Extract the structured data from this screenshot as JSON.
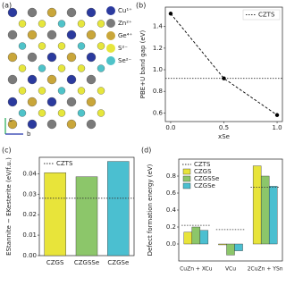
{
  "structure": {
    "label": "(a)",
    "legend": [
      "Cu¹⁺",
      "Zn²⁺",
      "Ge⁴⁺",
      "S²⁻",
      "Se²⁻"
    ],
    "legend_colors": [
      "#2b3a9e",
      "#7a7a7a",
      "#c9a63a",
      "#e6e63c",
      "#4fc3c9"
    ],
    "axes": [
      "c",
      "b"
    ]
  },
  "chart_data": [
    {
      "type": "line",
      "label": "(b)",
      "x": [
        0,
        0.5,
        1.0
      ],
      "series": [
        {
          "values": [
            1.52,
            0.92,
            0.58
          ],
          "color": "#000000"
        }
      ],
      "xlim": [
        -0.05,
        1.05
      ],
      "xticks": [
        {
          "value": 0,
          "label": "0.0"
        },
        {
          "value": 0.5,
          "label": "0.5"
        },
        {
          "value": 1,
          "label": "1.0"
        }
      ],
      "ylim": [
        0.52,
        1.58
      ],
      "yticks": [
        0.6,
        0.8,
        {
          "value": 1,
          "label": "1.0"
        },
        1.2,
        1.4
      ],
      "xlabel": "xSe",
      "ylabel": "PBE+U band gap (eV)",
      "reference": {
        "name": "CZTS",
        "value": 0.92
      },
      "legend": "upper right"
    },
    {
      "type": "bar",
      "label": "(c)",
      "categories": [
        "CZGS",
        "CZGSSe",
        "CZGSe"
      ],
      "values": [
        0.0405,
        0.0385,
        0.046
      ],
      "colors": [
        "#e8e43a",
        "#8cc66a",
        "#4bbfd0"
      ],
      "ylim": [
        0,
        0.048
      ],
      "yticks": [
        {
          "value": 0,
          "label": "0.00"
        },
        {
          "value": 0.01,
          "label": "0.01"
        },
        {
          "value": 0.02,
          "label": "0.02"
        },
        {
          "value": 0.03,
          "label": "0.03"
        },
        {
          "value": 0.04,
          "label": "0.04"
        }
      ],
      "ylabel": "EStannite − EKesterite (eV/f.u.)",
      "reference": {
        "name": "CZTS",
        "value": 0.028
      },
      "legend": "upper left"
    },
    {
      "type": "grouped_bar",
      "label": "(d)",
      "categories": [
        "CuZn + XCu",
        "VCu",
        "2CuZn + YSn"
      ],
      "series": [
        {
          "name": "CZGS",
          "color": "#e8e43a",
          "values": [
            0.14,
            -0.01,
            0.92
          ]
        },
        {
          "name": "CZGSSe",
          "color": "#8cc66a",
          "values": [
            0.2,
            -0.13,
            0.8
          ]
        },
        {
          "name": "CZGSe",
          "color": "#4bbfd0",
          "values": [
            0.16,
            -0.08,
            0.68
          ]
        }
      ],
      "ylim": [
        -0.2,
        1.0
      ],
      "yticks": [
        {
          "value": 0,
          "label": "0.0"
        },
        {
          "value": 0.2,
          "label": "0.2"
        },
        {
          "value": 0.4,
          "label": "0.4"
        },
        {
          "value": 0.6,
          "label": "0.6"
        },
        {
          "value": 0.8,
          "label": "0.8"
        }
      ],
      "ylabel": "Defect formation energy (eV)",
      "reference": {
        "name": "CZTS",
        "values": [
          0.22,
          0.17,
          0.67
        ]
      },
      "legend": "upper left"
    }
  ]
}
